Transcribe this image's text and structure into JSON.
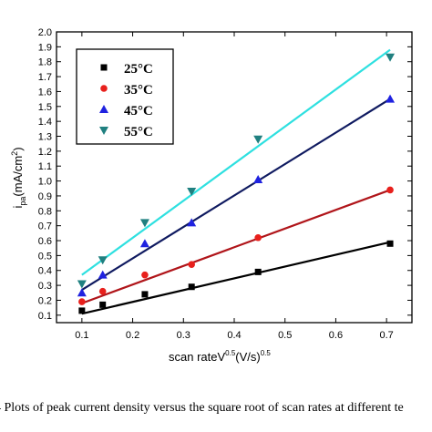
{
  "chart_data": {
    "type": "scatter",
    "xlabel_main": "scan rateV",
    "xlabel_sup1": "0.5",
    "xlabel_mid": "(V/s)",
    "xlabel_sup2": "0.5",
    "ylabel_main": "i",
    "ylabel_sub": "pa",
    "ylabel_unit": "(mA/cm",
    "ylabel_sup": "2",
    "ylabel_close": ")",
    "xlim": [
      0.05,
      0.75
    ],
    "ylim": [
      0.05,
      2.0
    ],
    "xticks": [
      0.1,
      0.2,
      0.3,
      0.4,
      0.5,
      0.6,
      0.7
    ],
    "xticklabels": [
      "0.1",
      "0.2",
      "0.3",
      "0.4",
      "0.5",
      "0.6",
      "0.7"
    ],
    "yticks": [
      0.1,
      0.2,
      0.3,
      0.4,
      0.5,
      0.6,
      0.7,
      0.8,
      0.9,
      1.0,
      1.1,
      1.2,
      1.3,
      1.4,
      1.5,
      1.6,
      1.7,
      1.8,
      1.9,
      2.0
    ],
    "yticklabels": [
      "0.1",
      "0.2",
      "0.3",
      "0.4",
      "0.5",
      "0.6",
      "0.7",
      "0.8",
      "0.9",
      "1.0",
      "1.1",
      "1.2",
      "1.3",
      "1.4",
      "1.5",
      "1.6",
      "1.7",
      "1.8",
      "1.9",
      "2.0"
    ],
    "legend_position": "top-left",
    "x": [
      0.1,
      0.141,
      0.224,
      0.316,
      0.447,
      0.707
    ],
    "series": [
      {
        "name": "25°C",
        "marker": "square",
        "color": "#000000",
        "line_color": "#000000",
        "values": [
          0.13,
          0.17,
          0.24,
          0.29,
          0.39,
          0.58
        ],
        "fit": [
          0.11,
          0.59
        ]
      },
      {
        "name": "35°C",
        "marker": "circle",
        "color": "#e8201c",
        "line_color": "#b0151a",
        "values": [
          0.19,
          0.26,
          0.37,
          0.44,
          0.62,
          0.94
        ],
        "fit": [
          0.18,
          0.94
        ]
      },
      {
        "name": "45°C",
        "marker": "triangle-up",
        "color": "#1f22e0",
        "line_color": "#0f1a60",
        "values": [
          0.25,
          0.37,
          0.58,
          0.72,
          1.01,
          1.55
        ],
        "fit": [
          0.27,
          1.55
        ]
      },
      {
        "name": "55°C",
        "marker": "triangle-down",
        "color": "#208080",
        "line_color": "#2ee0e0",
        "values": [
          0.31,
          0.47,
          0.72,
          0.93,
          1.28,
          1.83
        ],
        "fit": [
          0.37,
          1.88
        ]
      }
    ]
  },
  "caption": "4 Plots of peak current density versus the square root of scan rates at different te"
}
